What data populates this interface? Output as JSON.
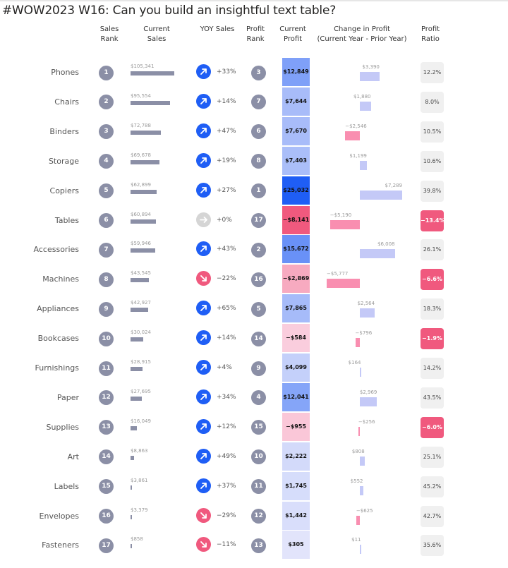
{
  "title": "#WOW2023 W16: Can you build an insightful text table?",
  "headers": {
    "sales_rank": [
      "Sales",
      "Rank"
    ],
    "current_sales": [
      "Current",
      "Sales"
    ],
    "yoy_sales": "YOY Sales",
    "profit_rank": [
      "Profit",
      "Rank"
    ],
    "current_profit": [
      "Current",
      "Profit"
    ],
    "change_in_profit": [
      "Change in Profit",
      "(Current Year - Prior Year)"
    ],
    "profit_ratio": [
      "Profit",
      "Ratio"
    ]
  },
  "colors": {
    "rank_circle": "#8b8fa6",
    "sales_bar": "#8b8fa6",
    "arrow_up": "#1f5ef5",
    "arrow_down": "#f0597e",
    "arrow_flat": "#d5d5d5",
    "profit_positive_max": "#1f5ef5",
    "profit_negative_max": "#f0597e",
    "change_positive": "#c4c9f7",
    "change_negative": "#f98eb0",
    "ratio_positive_bg": "#f0f0f0",
    "ratio_negative_bg": "#f0597e"
  },
  "chart_data": {
    "type": "table",
    "columns": [
      "Sales Rank",
      "Current Sales",
      "YOY Sales",
      "Profit Rank",
      "Current Profit",
      "Change in Profit (Current Year - Prior Year)",
      "Profit Ratio"
    ],
    "rows": [
      {
        "category": "Phones",
        "sales_rank": 1,
        "sales_value": 105341,
        "sales": "$105,341",
        "yoy_value": 33,
        "yoy": "+33%",
        "trend": "up",
        "profit_rank": 3,
        "profit_value": 12849,
        "profit": "$12,849",
        "change_value": 3390,
        "change": "$3,390",
        "ratio": "12.2%"
      },
      {
        "category": "Chairs",
        "sales_rank": 2,
        "sales_value": 95554,
        "sales": "$95,554",
        "yoy_value": 14,
        "yoy": "+14%",
        "trend": "up",
        "profit_rank": 7,
        "profit_value": 7644,
        "profit": "$7,644",
        "change_value": 1880,
        "change": "$1,880",
        "ratio": "8.0%"
      },
      {
        "category": "Binders",
        "sales_rank": 3,
        "sales_value": 72788,
        "sales": "$72,788",
        "yoy_value": 47,
        "yoy": "+47%",
        "trend": "up",
        "profit_rank": 6,
        "profit_value": 7670,
        "profit": "$7,670",
        "change_value": -2546,
        "change": "−$2,546",
        "ratio": "10.5%"
      },
      {
        "category": "Storage",
        "sales_rank": 4,
        "sales_value": 69678,
        "sales": "$69,678",
        "yoy_value": 19,
        "yoy": "+19%",
        "trend": "up",
        "profit_rank": 8,
        "profit_value": 7403,
        "profit": "$7,403",
        "change_value": 1199,
        "change": "$1,199",
        "ratio": "10.6%"
      },
      {
        "category": "Copiers",
        "sales_rank": 5,
        "sales_value": 62899,
        "sales": "$62,899",
        "yoy_value": 27,
        "yoy": "+27%",
        "trend": "up",
        "profit_rank": 1,
        "profit_value": 25032,
        "profit": "$25,032",
        "change_value": 7289,
        "change": "$7,289",
        "ratio": "39.8%"
      },
      {
        "category": "Tables",
        "sales_rank": 6,
        "sales_value": 60894,
        "sales": "$60,894",
        "yoy_value": 0,
        "yoy": "+0%",
        "trend": "flat",
        "profit_rank": 17,
        "profit_value": -8141,
        "profit": "−$8,141",
        "change_value": -5190,
        "change": "−$5,190",
        "ratio": "−13.4%"
      },
      {
        "category": "Accessories",
        "sales_rank": 7,
        "sales_value": 59946,
        "sales": "$59,946",
        "yoy_value": 43,
        "yoy": "+43%",
        "trend": "up",
        "profit_rank": 2,
        "profit_value": 15672,
        "profit": "$15,672",
        "change_value": 6008,
        "change": "$6,008",
        "ratio": "26.1%"
      },
      {
        "category": "Machines",
        "sales_rank": 8,
        "sales_value": 43545,
        "sales": "$43,545",
        "yoy_value": -22,
        "yoy": "−22%",
        "trend": "down",
        "profit_rank": 16,
        "profit_value": -2869,
        "profit": "−$2,869",
        "change_value": -5777,
        "change": "−$5,777",
        "ratio": "−6.6%"
      },
      {
        "category": "Appliances",
        "sales_rank": 9,
        "sales_value": 42927,
        "sales": "$42,927",
        "yoy_value": 65,
        "yoy": "+65%",
        "trend": "up",
        "profit_rank": 5,
        "profit_value": 7865,
        "profit": "$7,865",
        "change_value": 2564,
        "change": "$2,564",
        "ratio": "18.3%"
      },
      {
        "category": "Bookcases",
        "sales_rank": 10,
        "sales_value": 30024,
        "sales": "$30,024",
        "yoy_value": 14,
        "yoy": "+14%",
        "trend": "up",
        "profit_rank": 14,
        "profit_value": -584,
        "profit": "−$584",
        "change_value": -796,
        "change": "−$796",
        "ratio": "−1.9%"
      },
      {
        "category": "Furnishings",
        "sales_rank": 11,
        "sales_value": 28915,
        "sales": "$28,915",
        "yoy_value": 4,
        "yoy": "+4%",
        "trend": "up",
        "profit_rank": 9,
        "profit_value": 4099,
        "profit": "$4,099",
        "change_value": 164,
        "change": "$164",
        "ratio": "14.2%"
      },
      {
        "category": "Paper",
        "sales_rank": 12,
        "sales_value": 27695,
        "sales": "$27,695",
        "yoy_value": 34,
        "yoy": "+34%",
        "trend": "up",
        "profit_rank": 4,
        "profit_value": 12041,
        "profit": "$12,041",
        "change_value": 2969,
        "change": "$2,969",
        "ratio": "43.5%"
      },
      {
        "category": "Supplies",
        "sales_rank": 13,
        "sales_value": 16049,
        "sales": "$16,049",
        "yoy_value": 12,
        "yoy": "+12%",
        "trend": "up",
        "profit_rank": 15,
        "profit_value": -955,
        "profit": "−$955",
        "change_value": -256,
        "change": "−$256",
        "ratio": "−6.0%"
      },
      {
        "category": "Art",
        "sales_rank": 14,
        "sales_value": 8863,
        "sales": "$8,863",
        "yoy_value": 49,
        "yoy": "+49%",
        "trend": "up",
        "profit_rank": 10,
        "profit_value": 2222,
        "profit": "$2,222",
        "change_value": 808,
        "change": "$808",
        "ratio": "25.1%"
      },
      {
        "category": "Labels",
        "sales_rank": 15,
        "sales_value": 3861,
        "sales": "$3,861",
        "yoy_value": 37,
        "yoy": "+37%",
        "trend": "up",
        "profit_rank": 11,
        "profit_value": 1745,
        "profit": "$1,745",
        "change_value": 552,
        "change": "$552",
        "ratio": "45.2%"
      },
      {
        "category": "Envelopes",
        "sales_rank": 16,
        "sales_value": 3379,
        "sales": "$3,379",
        "yoy_value": -29,
        "yoy": "−29%",
        "trend": "down",
        "profit_rank": 12,
        "profit_value": 1442,
        "profit": "$1,442",
        "change_value": -625,
        "change": "−$625",
        "ratio": "42.7%"
      },
      {
        "category": "Fasteners",
        "sales_rank": 17,
        "sales_value": 858,
        "sales": "$858",
        "yoy_value": -11,
        "yoy": "−11%",
        "trend": "down",
        "profit_rank": 13,
        "profit_value": 305,
        "profit": "$305",
        "change_value": 11,
        "change": "$11",
        "ratio": "35.6%"
      }
    ]
  }
}
